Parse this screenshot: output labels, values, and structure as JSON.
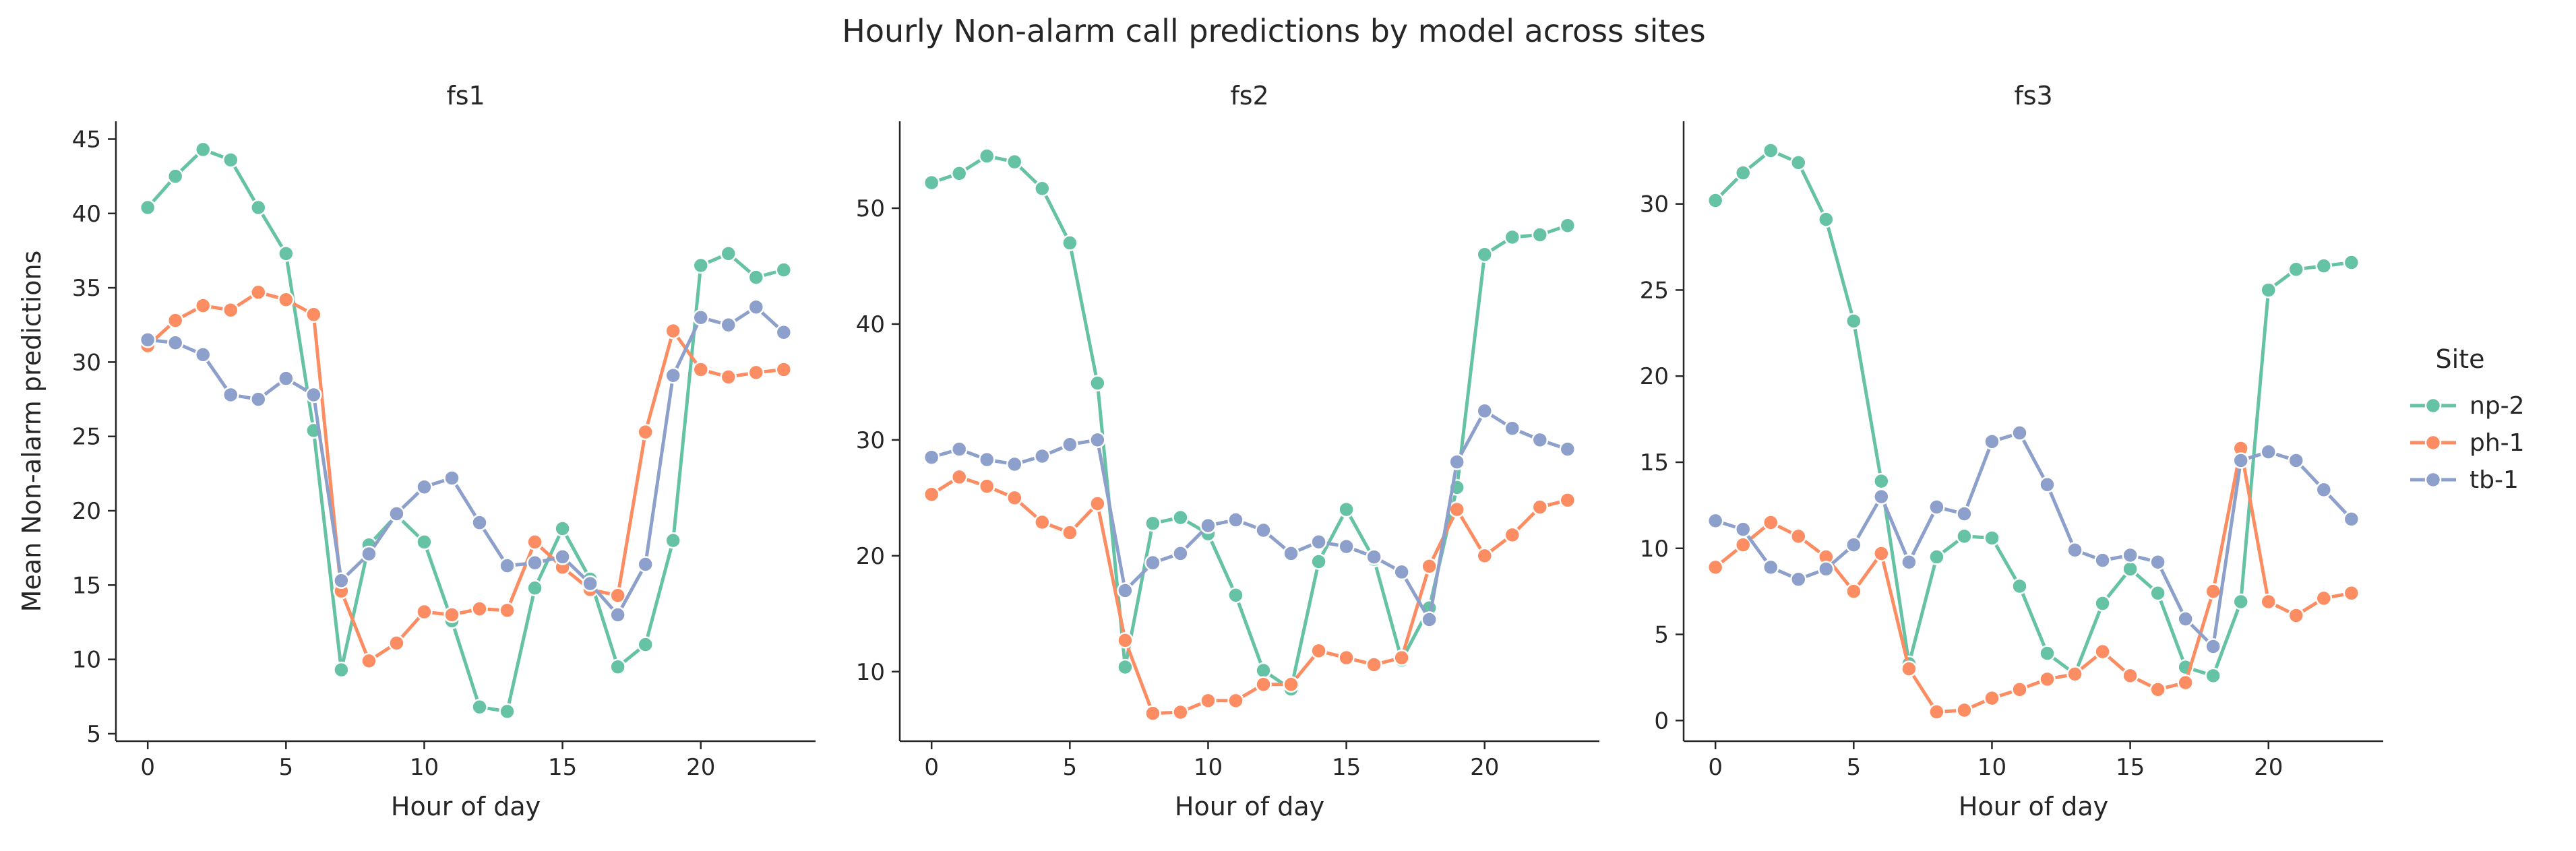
{
  "title": "Hourly Non-alarm call predictions by model across sites",
  "legend": {
    "title": "Site",
    "placement": "right"
  },
  "colors": {
    "np-2": "#66c2a5",
    "ph-1": "#fc8d62",
    "tb-1": "#8da0cb"
  },
  "chart_data": [
    {
      "type": "line",
      "panel_title": "fs1",
      "xlabel": "Hour of day",
      "ylabel": "Mean Non-alarm predictions",
      "xlim": [
        -1.15,
        24.15
      ],
      "ylim": [
        4.5,
        46.2
      ],
      "xticks": [
        0,
        5,
        10,
        15,
        20
      ],
      "yticks": [
        5,
        10,
        15,
        20,
        25,
        30,
        35,
        40,
        45
      ],
      "x": [
        0,
        1,
        2,
        3,
        4,
        5,
        6,
        7,
        8,
        9,
        10,
        11,
        12,
        13,
        14,
        15,
        16,
        17,
        18,
        19,
        20,
        21,
        22,
        23
      ],
      "series": [
        {
          "name": "np-2",
          "values": [
            40.4,
            42.5,
            44.3,
            43.6,
            40.4,
            37.3,
            25.4,
            9.3,
            17.7,
            19.7,
            17.9,
            12.6,
            6.8,
            6.5,
            14.8,
            18.8,
            15.4,
            9.5,
            11.0,
            18.0,
            36.5,
            37.3,
            35.7,
            36.2
          ]
        },
        {
          "name": "ph-1",
          "values": [
            31.1,
            32.8,
            33.8,
            33.5,
            34.7,
            34.2,
            33.2,
            14.6,
            9.9,
            11.1,
            13.2,
            13.0,
            13.4,
            13.3,
            17.9,
            16.2,
            14.7,
            14.3,
            25.3,
            32.1,
            29.5,
            29.0,
            29.3,
            29.5
          ]
        },
        {
          "name": "tb-1",
          "values": [
            31.5,
            31.3,
            30.5,
            27.8,
            27.5,
            28.9,
            27.8,
            15.3,
            17.1,
            19.8,
            21.6,
            22.2,
            19.2,
            16.3,
            16.5,
            16.9,
            15.1,
            13.0,
            16.4,
            29.1,
            33.0,
            32.5,
            33.7,
            32.0
          ]
        }
      ]
    },
    {
      "type": "line",
      "panel_title": "fs2",
      "xlabel": "Hour of day",
      "ylabel": "",
      "xlim": [
        -1.15,
        24.15
      ],
      "ylim": [
        4.0,
        57.5
      ],
      "xticks": [
        0,
        5,
        10,
        15,
        20
      ],
      "yticks": [
        10,
        20,
        30,
        40,
        50
      ],
      "x": [
        0,
        1,
        2,
        3,
        4,
        5,
        6,
        7,
        8,
        9,
        10,
        11,
        12,
        13,
        14,
        15,
        16,
        17,
        18,
        19,
        20,
        21,
        22,
        23
      ],
      "series": [
        {
          "name": "np-2",
          "values": [
            52.2,
            53.0,
            54.5,
            54.0,
            51.7,
            47.0,
            34.9,
            10.4,
            22.8,
            23.3,
            21.9,
            16.6,
            10.1,
            8.5,
            19.5,
            24.0,
            19.7,
            11.0,
            15.5,
            25.9,
            46.0,
            47.5,
            47.7,
            48.5
          ]
        },
        {
          "name": "ph-1",
          "values": [
            25.3,
            26.8,
            26.0,
            25.0,
            22.9,
            22.0,
            24.5,
            12.7,
            6.4,
            6.5,
            7.5,
            7.5,
            8.9,
            8.9,
            11.8,
            11.2,
            10.6,
            11.2,
            19.1,
            24.0,
            20.0,
            21.8,
            24.2,
            24.8
          ]
        },
        {
          "name": "tb-1",
          "values": [
            28.5,
            29.2,
            28.3,
            27.9,
            28.6,
            29.6,
            30.0,
            17.0,
            19.4,
            20.2,
            22.6,
            23.1,
            22.2,
            20.2,
            21.2,
            20.8,
            19.9,
            18.6,
            14.5,
            28.1,
            32.5,
            31.0,
            30.0,
            29.2
          ]
        }
      ]
    },
    {
      "type": "line",
      "panel_title": "fs3",
      "xlabel": "Hour of day",
      "ylabel": "",
      "xlim": [
        -1.15,
        24.15
      ],
      "ylim": [
        -1.2,
        34.8
      ],
      "xticks": [
        0,
        5,
        10,
        15,
        20
      ],
      "yticks": [
        0,
        5,
        10,
        15,
        20,
        25,
        30
      ],
      "x": [
        0,
        1,
        2,
        3,
        4,
        5,
        6,
        7,
        8,
        9,
        10,
        11,
        12,
        13,
        14,
        15,
        16,
        17,
        18,
        19,
        20,
        21,
        22,
        23
      ],
      "series": [
        {
          "name": "np-2",
          "values": [
            30.2,
            31.8,
            33.1,
            32.4,
            29.1,
            23.2,
            13.9,
            3.3,
            9.5,
            10.7,
            10.6,
            7.8,
            3.9,
            2.7,
            6.8,
            8.8,
            7.4,
            3.1,
            2.6,
            6.9,
            25.0,
            26.2,
            26.4,
            26.6
          ]
        },
        {
          "name": "ph-1",
          "values": [
            8.9,
            10.2,
            11.5,
            10.7,
            9.5,
            7.5,
            9.7,
            3.0,
            0.5,
            0.6,
            1.3,
            1.8,
            2.4,
            2.7,
            4.0,
            2.6,
            1.8,
            2.2,
            7.5,
            15.8,
            6.9,
            6.1,
            7.1,
            7.4
          ]
        },
        {
          "name": "tb-1",
          "values": [
            11.6,
            11.1,
            8.9,
            8.2,
            8.8,
            10.2,
            13.0,
            9.2,
            12.4,
            12.0,
            16.2,
            16.7,
            13.7,
            9.9,
            9.3,
            9.6,
            9.2,
            5.9,
            4.3,
            15.1,
            15.6,
            15.1,
            13.4,
            11.7
          ]
        }
      ]
    }
  ]
}
